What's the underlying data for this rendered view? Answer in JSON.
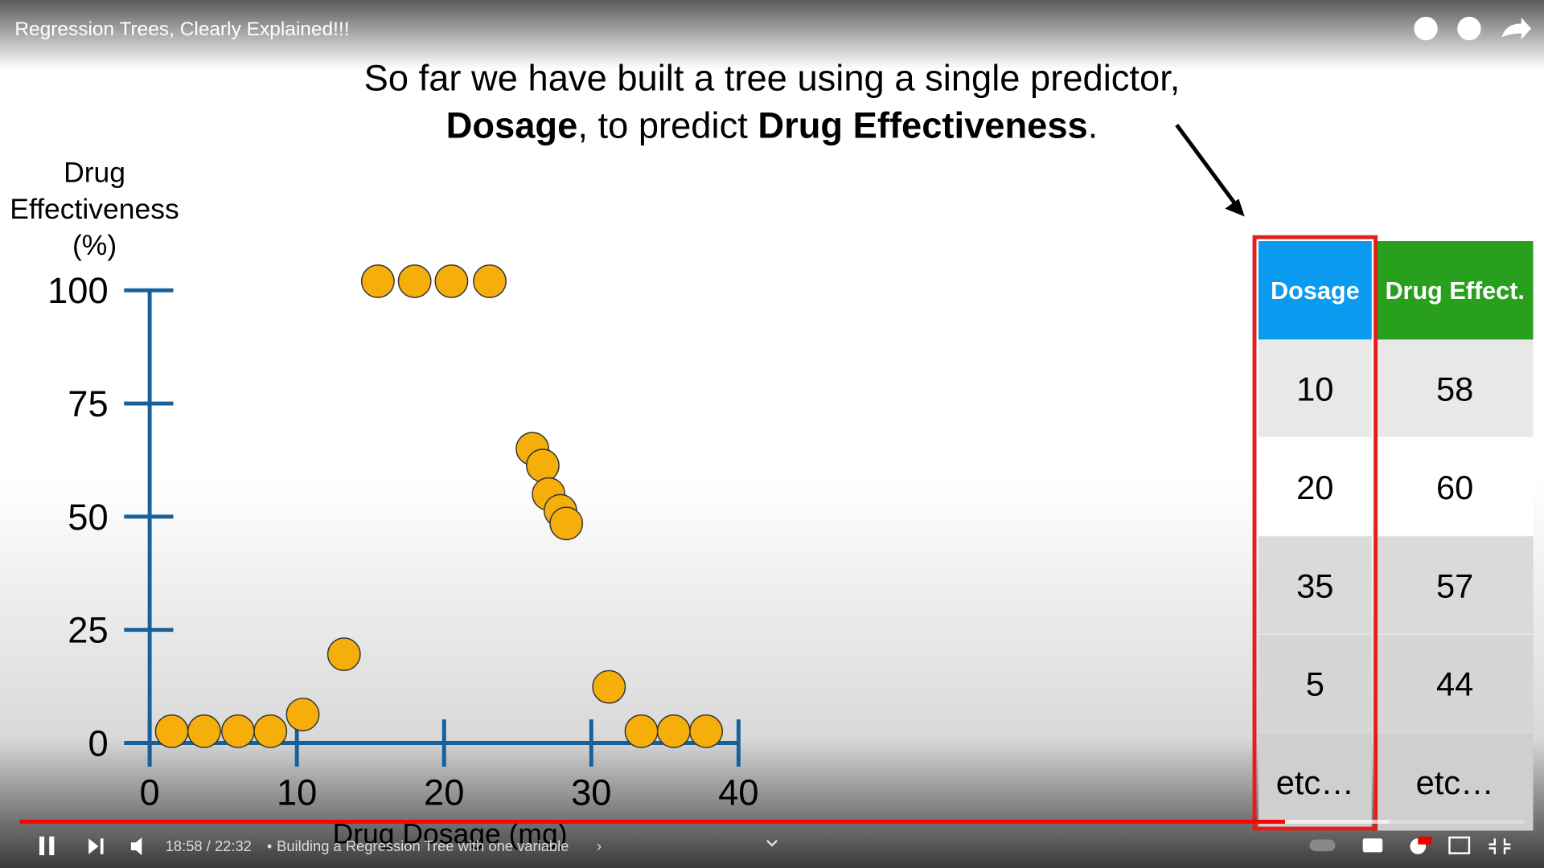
{
  "player": {
    "title": "Regression Trees, Clearly Explained!!!",
    "time": "18:58 / 22:32",
    "chapter": "Building a Regression Tree with one variable"
  },
  "caption": {
    "line1": "So far we have built a tree using a single predictor,",
    "line2": [
      "Dosage",
      ", to predict ",
      "Drug Effectiveness",
      "."
    ]
  },
  "chart_data": {
    "type": "scatter",
    "ylabel_lines": [
      "Drug",
      "Effectiveness",
      "(%)"
    ],
    "xlabel": "Drug Dosage (mg)",
    "x": [
      1.5,
      3.7,
      6,
      8.2,
      10.4,
      13.2,
      15.5,
      18,
      20.5,
      23.1,
      26,
      26.7,
      27.1,
      27.9,
      28.3,
      31.2,
      33.4,
      35.6,
      37.8
    ],
    "values": [
      2.6,
      2.6,
      2.6,
      2.6,
      6.3,
      19.6,
      102,
      102,
      102,
      102,
      65,
      61.3,
      55,
      51.3,
      48.5,
      12.4,
      2.6,
      2.6,
      2.6
    ],
    "color": "#f5ae0a",
    "xlim": [
      -1.7,
      40
    ],
    "ylim": [
      -5,
      100
    ],
    "xticks": [
      0,
      10,
      20,
      30,
      40
    ],
    "yticks": [
      0,
      25,
      50,
      75,
      100
    ]
  },
  "table": {
    "headers": [
      "Dosage",
      "Drug Effect."
    ],
    "rows": [
      [
        10,
        58
      ],
      [
        20,
        60
      ],
      [
        35,
        57
      ],
      [
        5,
        44
      ],
      [
        "etc…",
        "etc…"
      ]
    ]
  }
}
